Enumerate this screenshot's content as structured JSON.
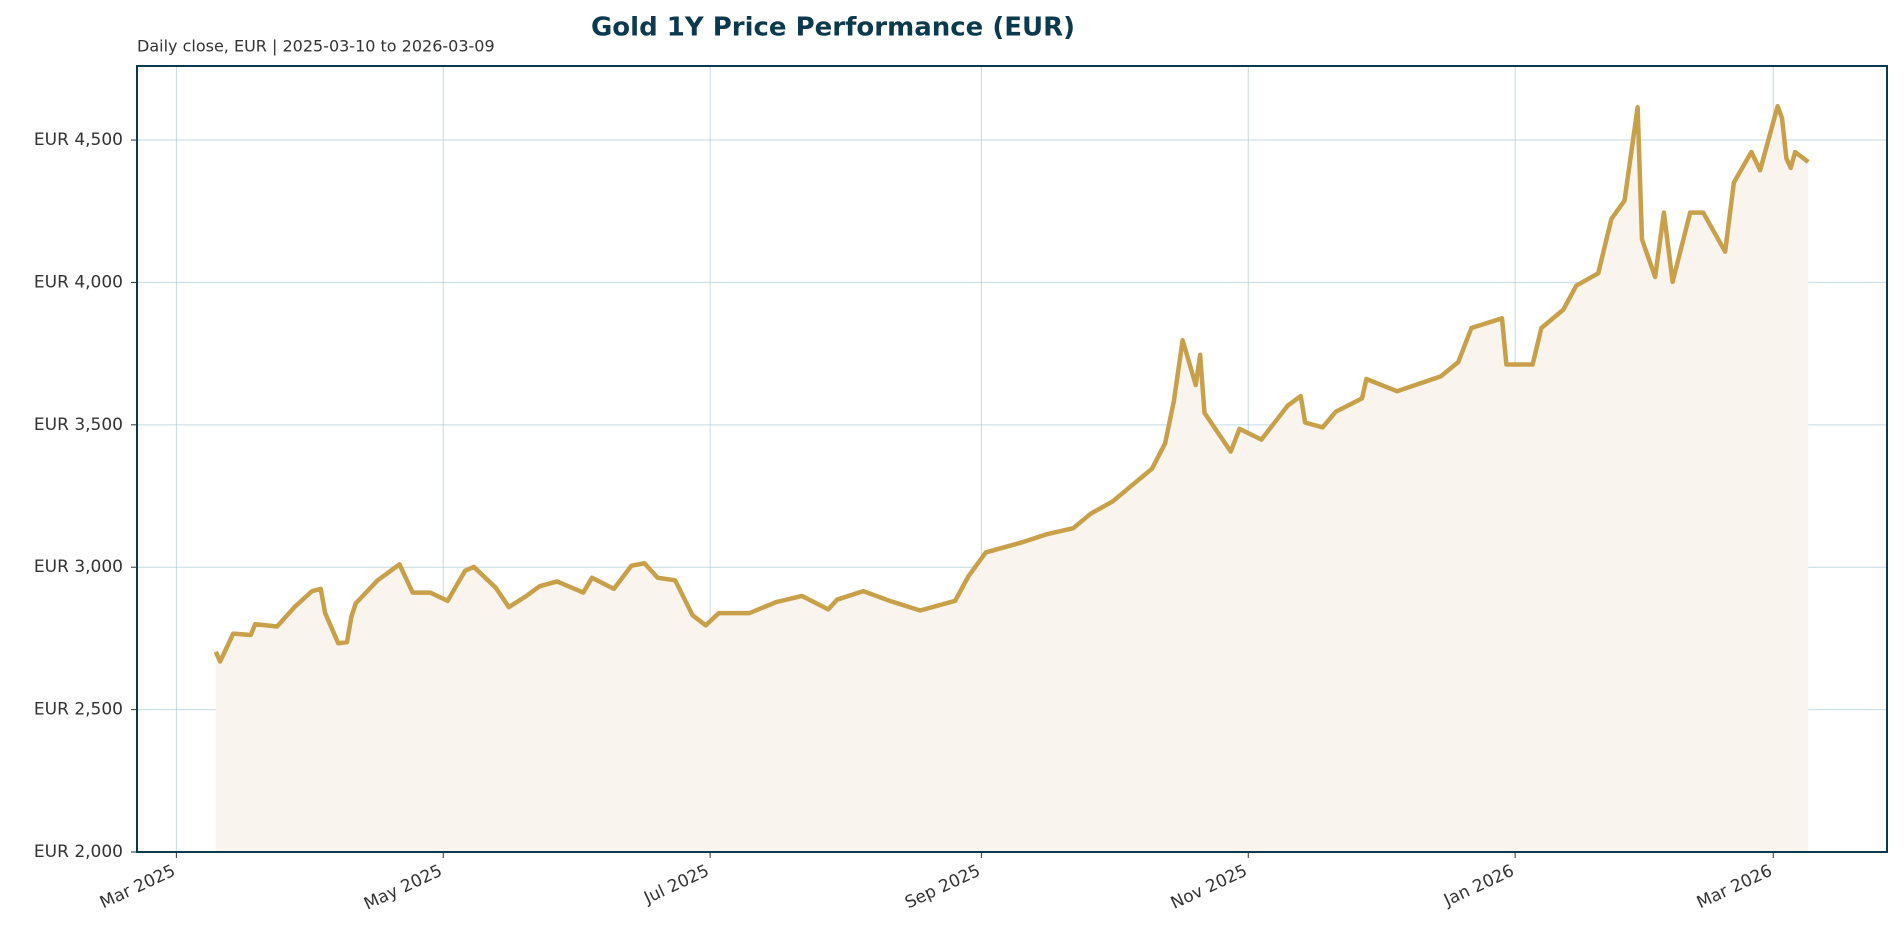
{
  "chart_data": {
    "type": "line",
    "title": "Gold 1Y Price Performance (EUR)",
    "subtitle": "Daily close, EUR | 2025-03-10 to 2026-03-09",
    "x": [
      "2025-03-10",
      "2025-03-11",
      "2025-03-14",
      "2025-03-18",
      "2025-03-19",
      "2025-03-24",
      "2025-03-28",
      "2025-04-01",
      "2025-04-03",
      "2025-04-04",
      "2025-04-07",
      "2025-04-09",
      "2025-04-10",
      "2025-04-11",
      "2025-04-16",
      "2025-04-21",
      "2025-04-24",
      "2025-04-28",
      "2025-05-02",
      "2025-05-06",
      "2025-05-08",
      "2025-05-13",
      "2025-05-16",
      "2025-05-20",
      "2025-05-23",
      "2025-05-27",
      "2025-06-02",
      "2025-06-04",
      "2025-06-09",
      "2025-06-13",
      "2025-06-16",
      "2025-06-19",
      "2025-06-23",
      "2025-06-27",
      "2025-06-30",
      "2025-07-03",
      "2025-07-10",
      "2025-07-16",
      "2025-07-22",
      "2025-07-28",
      "2025-07-30",
      "2025-08-05",
      "2025-08-11",
      "2025-08-18",
      "2025-08-26",
      "2025-08-29",
      "2025-09-02",
      "2025-09-10",
      "2025-09-16",
      "2025-09-22",
      "2025-09-26",
      "2025-10-01",
      "2025-10-06",
      "2025-10-10",
      "2025-10-13",
      "2025-10-15",
      "2025-10-17",
      "2025-10-20",
      "2025-10-21",
      "2025-10-22",
      "2025-10-28",
      "2025-10-30",
      "2025-11-04",
      "2025-11-10",
      "2025-11-13",
      "2025-11-14",
      "2025-11-18",
      "2025-11-21",
      "2025-11-27",
      "2025-11-28",
      "2025-12-05",
      "2025-12-15",
      "2025-12-19",
      "2025-12-22",
      "2025-12-29",
      "2025-12-30",
      "2026-01-05",
      "2026-01-07",
      "2026-01-12",
      "2026-01-15",
      "2026-01-20",
      "2026-01-23",
      "2026-01-26",
      "2026-01-29",
      "2026-01-30",
      "2026-02-02",
      "2026-02-04",
      "2026-02-06",
      "2026-02-10",
      "2026-02-13",
      "2026-02-18",
      "2026-02-20",
      "2026-02-24",
      "2026-02-26",
      "2026-03-02",
      "2026-03-03",
      "2026-03-04",
      "2026-03-05",
      "2026-03-06",
      "2026-03-09"
    ],
    "series": [
      {
        "name": "Gold",
        "color": "#c8a04a",
        "fill": "#f9f5ee",
        "values": [
          2703,
          2669,
          2767,
          2762,
          2800,
          2792,
          2860,
          2916,
          2924,
          2839,
          2733,
          2737,
          2826,
          2873,
          2954,
          3010,
          2911,
          2911,
          2882,
          2988,
          3001,
          2928,
          2860,
          2899,
          2933,
          2950,
          2911,
          2963,
          2924,
          3005,
          3014,
          2963,
          2954,
          2831,
          2796,
          2839,
          2839,
          2877,
          2899,
          2852,
          2886,
          2916,
          2882,
          2848,
          2882,
          2967,
          3052,
          3086,
          3116,
          3137,
          3188,
          3231,
          3295,
          3346,
          3435,
          3584,
          3797,
          3640,
          3746,
          3542,
          3406,
          3486,
          3448,
          3567,
          3601,
          3508,
          3491,
          3546,
          3593,
          3661,
          3618,
          3670,
          3720,
          3840,
          3874,
          3712,
          3712,
          3840,
          3904,
          3989,
          4032,
          4223,
          4287,
          4615,
          4151,
          4019,
          4245,
          4002,
          4245,
          4245,
          4108,
          4351,
          4458,
          4394,
          4619,
          4577,
          4436,
          4402,
          4458,
          4423
        ]
      }
    ],
    "xlim": [
      "2025-02-20",
      "2026-03-27"
    ],
    "xticks": [
      {
        "value": "2025-03-01",
        "label": "Mar 2025"
      },
      {
        "value": "2025-05-01",
        "label": "May 2025"
      },
      {
        "value": "2025-07-01",
        "label": "Jul 2025"
      },
      {
        "value": "2025-09-01",
        "label": "Sep 2025"
      },
      {
        "value": "2025-11-01",
        "label": "Nov 2025"
      },
      {
        "value": "2026-01-01",
        "label": "Jan 2026"
      },
      {
        "value": "2026-03-01",
        "label": "Mar 2026"
      }
    ],
    "ylim": [
      2000,
      4760
    ],
    "yticks": [
      {
        "value": 2000,
        "label": "EUR 2,000"
      },
      {
        "value": 2500,
        "label": "EUR 2,500"
      },
      {
        "value": 3000,
        "label": "EUR 3,000"
      },
      {
        "value": 3500,
        "label": "EUR 3,500"
      },
      {
        "value": 4000,
        "label": "EUR 4,000"
      },
      {
        "value": 4500,
        "label": "EUR 4,500"
      }
    ],
    "grid": true
  }
}
